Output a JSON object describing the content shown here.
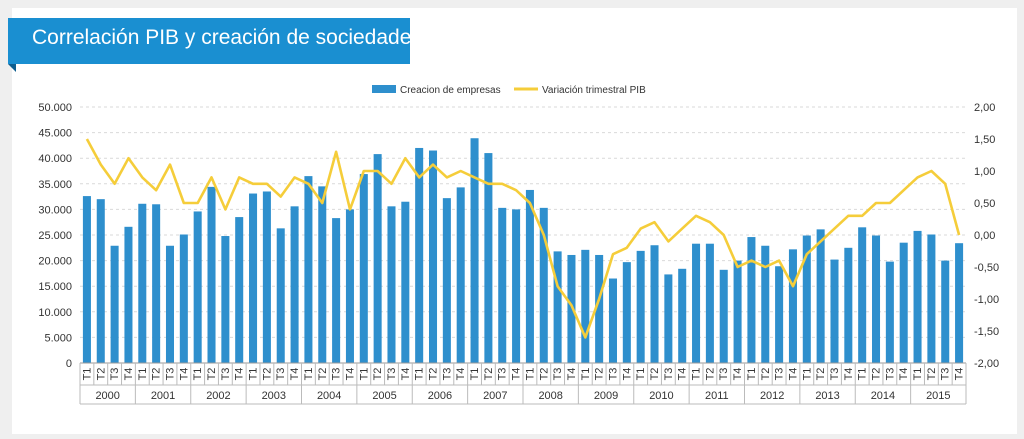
{
  "header": {
    "title": "Correlación PIB y creación de sociedades"
  },
  "colors": {
    "bars": "#2e8fcd",
    "line": "#f5cd3a",
    "banner": "#1a8fd1"
  },
  "chart_data": {
    "type": "bar",
    "title": "",
    "legend_position": "top",
    "grid": true,
    "series": [
      {
        "name": "Creacion de empresas",
        "type": "bar",
        "axis": "left",
        "values": [
          32600,
          32000,
          22900,
          26600,
          31100,
          31000,
          22900,
          25100,
          29600,
          34400,
          24800,
          28500,
          33100,
          33500,
          26300,
          30600,
          36500,
          34500,
          28300,
          30000,
          36900,
          40800,
          30600,
          31500,
          42000,
          41500,
          32200,
          34300,
          43900,
          41000,
          30300,
          30000,
          33800,
          30300,
          21800,
          21100,
          22100,
          21100,
          16500,
          19700,
          21900,
          23000,
          17300,
          18400,
          23300,
          23300,
          18200,
          20000,
          24600,
          22900,
          18900,
          22200,
          24900,
          26100,
          20200,
          22500,
          26500,
          24900,
          19800,
          23500,
          25800,
          25100,
          20000,
          23400
        ]
      },
      {
        "name": "Variación trimestral PIB",
        "type": "line",
        "axis": "right",
        "values": [
          1.5,
          1.1,
          0.8,
          1.2,
          0.9,
          0.7,
          1.1,
          0.5,
          0.5,
          0.9,
          0.4,
          0.9,
          0.8,
          0.8,
          0.6,
          0.9,
          0.8,
          0.5,
          1.3,
          0.4,
          1.0,
          1.0,
          0.8,
          1.2,
          0.9,
          1.1,
          0.9,
          1.0,
          0.9,
          0.8,
          0.8,
          0.7,
          0.5,
          0.0,
          -0.8,
          -1.1,
          -1.6,
          -1.0,
          -0.3,
          -0.2,
          0.1,
          0.2,
          -0.1,
          0.1,
          0.3,
          0.2,
          0.0,
          -0.5,
          -0.4,
          -0.5,
          -0.4,
          -0.8,
          -0.3,
          -0.1,
          0.1,
          0.3,
          0.3,
          0.5,
          0.5,
          0.7,
          0.9,
          1.0,
          0.8,
          0.0
        ]
      }
    ],
    "quarters": [
      "T1",
      "T2",
      "T3",
      "T4"
    ],
    "years": [
      "2000",
      "2001",
      "2002",
      "2003",
      "2004",
      "2005",
      "2006",
      "2007",
      "2008",
      "2009",
      "2010",
      "2011",
      "2012",
      "2013",
      "2014",
      "2015"
    ],
    "y_left": {
      "min": 0,
      "max": 50000,
      "step": 5000,
      "ticks": [
        "0",
        "5.000",
        "10.000",
        "15.000",
        "20.000",
        "25.000",
        "30.000",
        "35.000",
        "40.000",
        "45.000",
        "50.000"
      ]
    },
    "y_right": {
      "min": -2,
      "max": 2,
      "step": 0.5,
      "ticks": [
        "-2,00",
        "-1,50",
        "-1,00",
        "-0,50",
        "0,00",
        "0,50",
        "1,00",
        "1,50",
        "2,00"
      ]
    }
  }
}
